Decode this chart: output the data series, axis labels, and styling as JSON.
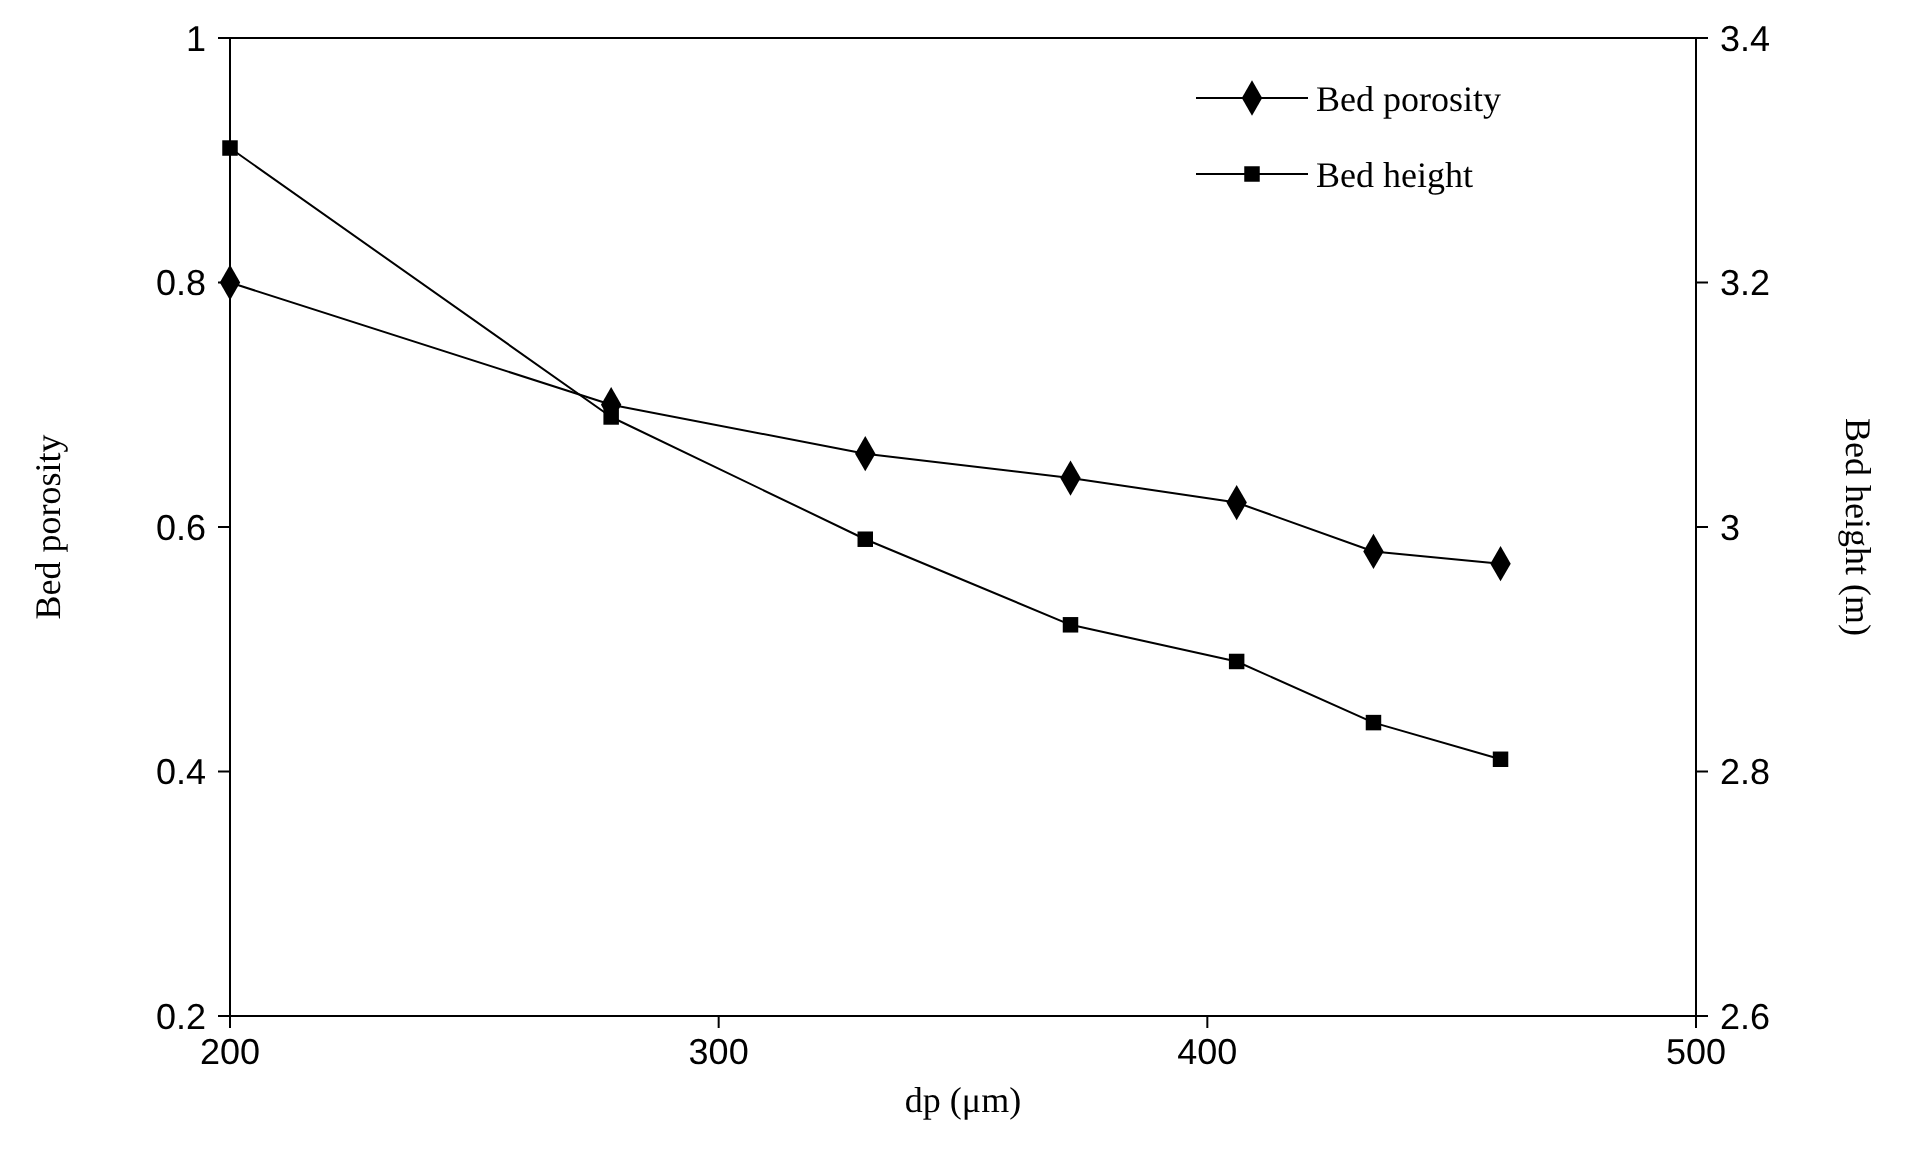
{
  "chart_data": {
    "type": "line",
    "xlabel": "dp (μm)",
    "ylabel": "Bed porosity",
    "y2label": "Bed height (m)",
    "xlim": [
      200,
      500
    ],
    "xticks": [
      200,
      300,
      400,
      500
    ],
    "ylim": [
      0.2,
      1
    ],
    "yticks": [
      0.2,
      0.4,
      0.6,
      0.8,
      1
    ],
    "y2lim": [
      2.6,
      3.4
    ],
    "y2ticks": [
      2.6,
      2.8,
      3,
      3.2,
      3.4
    ],
    "x": [
      200,
      278,
      330,
      372,
      406,
      434,
      460
    ],
    "grid": false,
    "legend": "top right",
    "line_style": "solid",
    "series": [
      {
        "name": "Bed porosity",
        "color": "#000000",
        "marker": "diamond",
        "values": [
          0.8,
          0.7,
          0.66,
          0.64,
          0.62,
          0.58,
          0.57
        ]
      },
      {
        "name": "Bed height",
        "color": "#000000",
        "marker": "square",
        "axis": "y2",
        "values": [
          3.31,
          3.09,
          2.99,
          2.92,
          2.89,
          2.84,
          2.81
        ]
      }
    ]
  }
}
